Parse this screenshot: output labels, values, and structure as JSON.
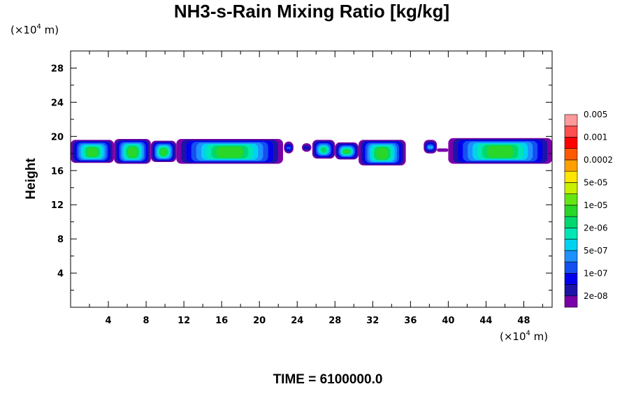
{
  "chart_data": {
    "type": "heatmap",
    "title": "NH3-s-Rain Mixing Ratio [kg/kg]",
    "ylabel": "Height",
    "xlabel": "",
    "x_unit": {
      "prefix": "(×10",
      "exp": "4",
      "suffix": " m)"
    },
    "y_unit": {
      "prefix": "(×10",
      "exp": "4",
      "suffix": " m)"
    },
    "xlim": [
      0,
      51
    ],
    "ylim": [
      0,
      30
    ],
    "x_ticks": [
      4,
      8,
      12,
      16,
      20,
      24,
      28,
      32,
      36,
      40,
      44,
      48
    ],
    "y_ticks": [
      4,
      8,
      12,
      16,
      20,
      24,
      28
    ],
    "time_label": "TIME = 6100000.0",
    "colorbar": {
      "colors": [
        "#7a00a8",
        "#1c14a8",
        "#0000ee",
        "#1450f0",
        "#1e90ff",
        "#00d2f0",
        "#00e6b4",
        "#00d76e",
        "#28d728",
        "#64e614",
        "#c8f000",
        "#ffe600",
        "#ffa000",
        "#ff5a00",
        "#ff0000",
        "#ff5050",
        "#ff9a9a"
      ],
      "labels": [
        "2e-08",
        "1e-07",
        "5e-07",
        "2e-06",
        "1e-05",
        "5e-05",
        "0.0002",
        "0.001",
        "0.005"
      ]
    },
    "layer_base": 17.3,
    "layer_top": 19.5,
    "cells": [
      {
        "x0": 0,
        "x1": 4.6,
        "level": 9,
        "top": 19.6,
        "bottom": 16.9
      },
      {
        "x0": 4.6,
        "x1": 8.5,
        "level": 9,
        "top": 19.7,
        "bottom": 16.8
      },
      {
        "x0": 8.5,
        "x1": 11.2,
        "level": 9,
        "top": 19.5,
        "bottom": 17.0
      },
      {
        "x0": 11.2,
        "x1": 22.5,
        "level": 9,
        "top": 19.7,
        "bottom": 16.8
      },
      {
        "x0": 22.6,
        "x1": 23.6,
        "level": 5,
        "top": 19.4,
        "bottom": 18.0
      },
      {
        "x0": 24.5,
        "x1": 25.5,
        "level": 4,
        "top": 19.2,
        "bottom": 18.2
      },
      {
        "x0": 25.6,
        "x1": 28.0,
        "level": 8,
        "top": 19.6,
        "bottom": 17.4
      },
      {
        "x0": 28.0,
        "x1": 30.5,
        "level": 9,
        "top": 19.3,
        "bottom": 17.3
      },
      {
        "x0": 30.5,
        "x1": 35.5,
        "level": 9,
        "top": 19.6,
        "bottom": 16.6
      },
      {
        "x0": 37.4,
        "x1": 38.8,
        "level": 6,
        "top": 19.6,
        "bottom": 18.0
      },
      {
        "x0": 38.8,
        "x1": 40.0,
        "level": 4,
        "top": 18.6,
        "bottom": 18.2
      },
      {
        "x0": 40.0,
        "x1": 51.0,
        "level": 9,
        "top": 19.8,
        "bottom": 16.8
      }
    ]
  }
}
